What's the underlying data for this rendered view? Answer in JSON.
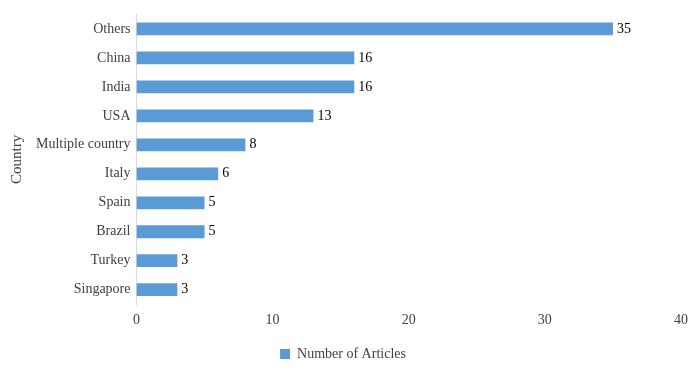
{
  "chart_data": {
    "type": "bar",
    "orientation": "horizontal",
    "categories": [
      "Others",
      "China",
      "India",
      "USA",
      "Multiple country",
      "Italy",
      "Spain",
      "Brazil",
      "Turkey",
      "Singapore"
    ],
    "series": [
      {
        "name": "Number of Articles",
        "color": "#5b9bd5",
        "values": [
          35,
          16,
          16,
          13,
          8,
          6,
          5,
          5,
          3,
          3
        ]
      }
    ],
    "y_label": "Country",
    "xlim": [
      0,
      40
    ],
    "xticks": [
      0,
      10,
      20,
      30,
      40
    ],
    "grid": false,
    "legend": "bottom",
    "data_labels": true
  }
}
